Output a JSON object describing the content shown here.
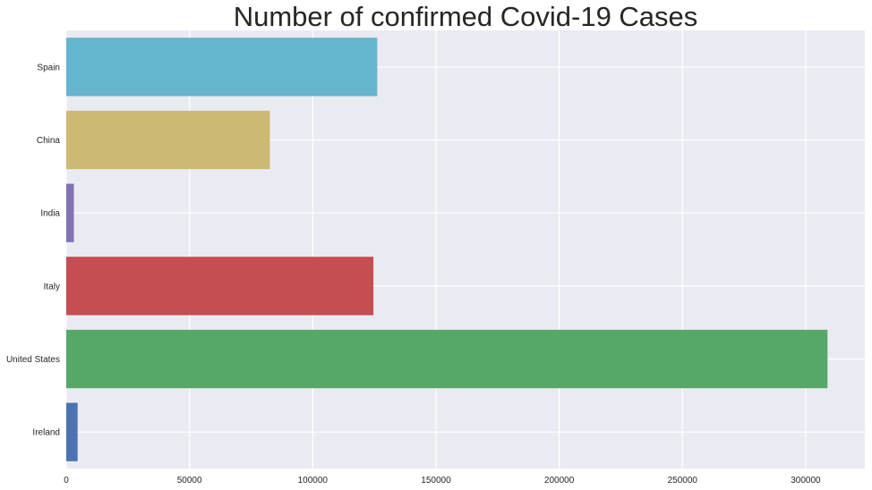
{
  "chart_data": {
    "type": "bar",
    "orientation": "horizontal",
    "title": "Number of confirmed Covid-19 Cases",
    "xlabel": "",
    "ylabel": "",
    "categories": [
      "Spain",
      "China",
      "India",
      "Italy",
      "United States",
      "Ireland"
    ],
    "values": [
      126168,
      82602,
      3082,
      124632,
      308850,
      4604
    ],
    "colors": [
      "#64b5cd",
      "#ccb974",
      "#8172b2",
      "#c44e52",
      "#55a868",
      "#4c72b0"
    ],
    "xlim": [
      0,
      324000
    ],
    "xticks": [
      0,
      50000,
      100000,
      150000,
      200000,
      250000,
      300000
    ],
    "xtick_labels": [
      "0",
      "50000",
      "100000",
      "150000",
      "200000",
      "250000",
      "300000"
    ],
    "grid": true,
    "background": "#eaeaf2"
  }
}
